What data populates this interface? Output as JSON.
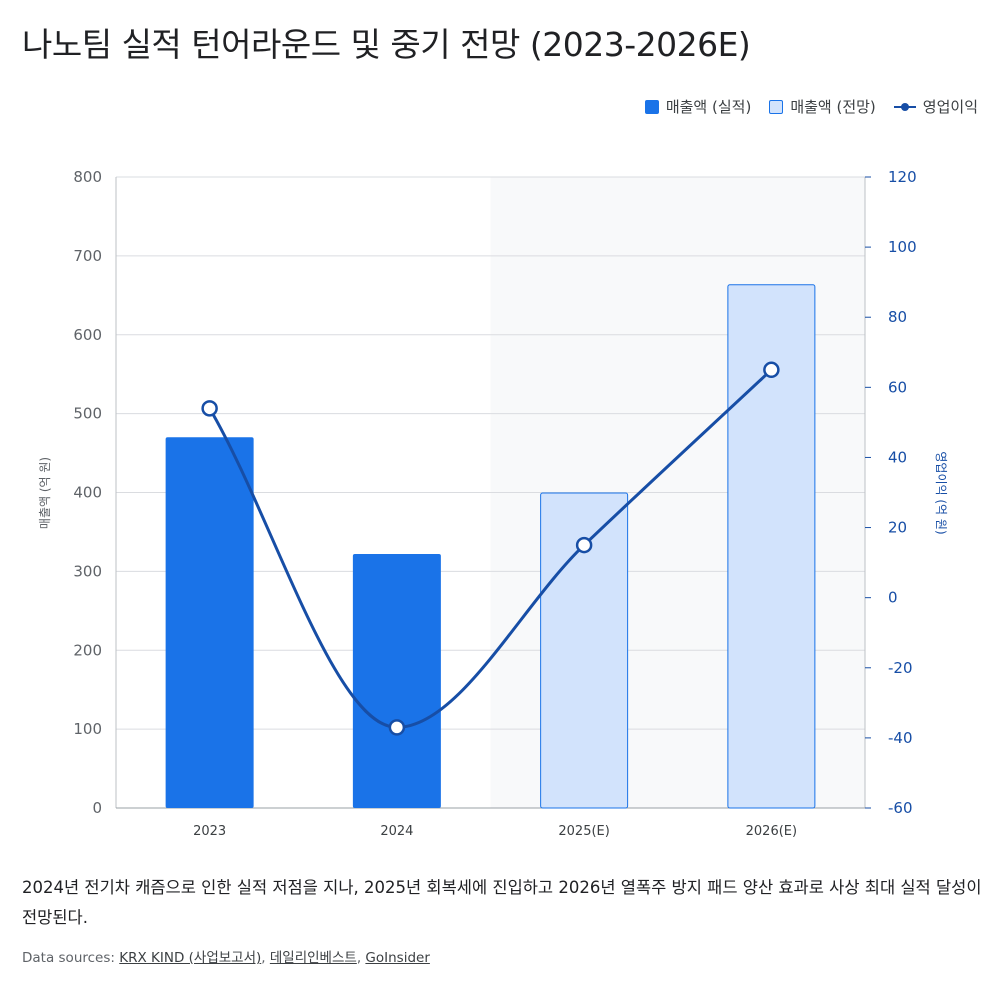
{
  "title": "나노팀 실적 턴어라운드 및 중기 전망 (2023-2026E)",
  "legend": {
    "actual": "매출액 (실적)",
    "forecast": "매출액 (전망)",
    "op": "영업이익"
  },
  "colors": {
    "actual": "#1a73e8",
    "forecast_fill": "#d2e3fc",
    "forecast_stroke": "#1a73e8",
    "line": "#174ea6",
    "shade": "#f8f9fa",
    "grid": "#dadce0"
  },
  "chart_data": {
    "type": "bar",
    "categories": [
      "2023",
      "2024",
      "2025(E)",
      "2026(E)"
    ],
    "series": [
      {
        "name": "매출액 (실적)",
        "type": "bar",
        "axis": "left",
        "values": [
          470,
          322,
          null,
          null
        ]
      },
      {
        "name": "매출액 (전망)",
        "type": "bar",
        "axis": "left",
        "values": [
          null,
          null,
          400,
          664
        ]
      },
      {
        "name": "영업이익",
        "type": "line",
        "axis": "right",
        "values": [
          54,
          -37,
          15,
          65
        ]
      }
    ],
    "ylabel": "매출액 (억 원)",
    "y2label": "영업이익 (억 원)",
    "ylim": [
      0,
      800
    ],
    "y2lim": [
      -60,
      120
    ],
    "yticks": [
      0,
      100,
      200,
      300,
      400,
      500,
      600,
      700,
      800
    ],
    "y2ticks": [
      -60,
      -40,
      -20,
      0,
      20,
      40,
      60,
      80,
      100,
      120
    ],
    "forecast_shaded_from": "2025(E)",
    "grid": true,
    "legend_position": "top-right"
  },
  "caption": "2024년 전기차 캐즘으로 인한 실적 저점을 지나, 2025년 회복세에 진입하고 2026년 열폭주 방지 패드 양산 효과로 사상 최대 실적 달성이 전망된다.",
  "sources": {
    "prefix": "Data sources: ",
    "links": [
      "KRX KIND (사업보고서)",
      "데일리인베스트",
      "GoInsider"
    ],
    "separator": ", "
  }
}
